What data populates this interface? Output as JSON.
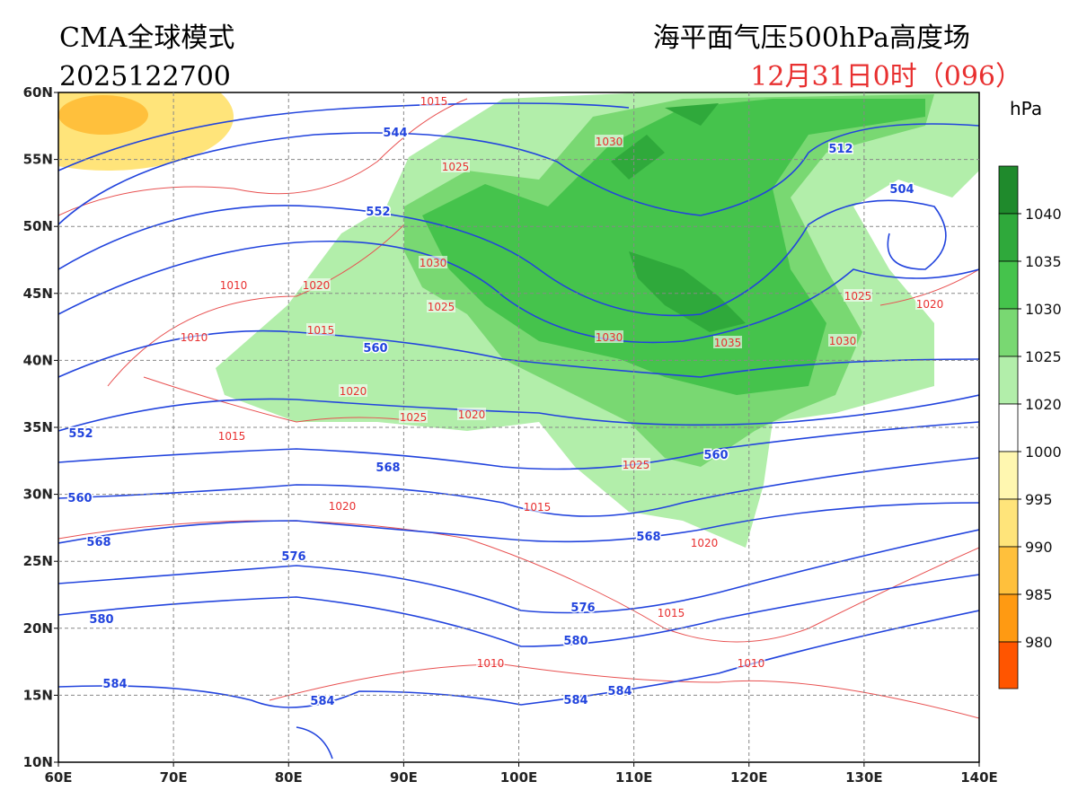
{
  "header": {
    "model": "CMA全球模式",
    "init_time": "2025122700",
    "product": "海平面气压500hPa高度场",
    "valid_time": "12月31日0时（096）"
  },
  "map": {
    "lon_range": [
      60,
      140
    ],
    "lat_range": [
      10,
      60
    ],
    "lon_ticks": [
      {
        "value": 60,
        "label": "60E"
      },
      {
        "value": 70,
        "label": "70E"
      },
      {
        "value": 80,
        "label": "80E"
      },
      {
        "value": 90,
        "label": "90E"
      },
      {
        "value": 100,
        "label": "100E"
      },
      {
        "value": 110,
        "label": "110E"
      },
      {
        "value": 120,
        "label": "120E"
      },
      {
        "value": 130,
        "label": "130E"
      },
      {
        "value": 140,
        "label": "140E"
      }
    ],
    "lat_ticks": [
      {
        "value": 10,
        "label": "10N"
      },
      {
        "value": 15,
        "label": "15N"
      },
      {
        "value": 20,
        "label": "20N"
      },
      {
        "value": 25,
        "label": "25N"
      },
      {
        "value": 30,
        "label": "30N"
      },
      {
        "value": 35,
        "label": "35N"
      },
      {
        "value": 40,
        "label": "40N"
      },
      {
        "value": 45,
        "label": "45N"
      },
      {
        "value": 50,
        "label": "50N"
      },
      {
        "value": 55,
        "label": "55N"
      },
      {
        "value": 60,
        "label": "60N"
      }
    ],
    "grid": true,
    "isobar_labels": [
      1015,
      1030,
      1025,
      1030,
      1010,
      1020,
      1025,
      1015,
      1010,
      1030,
      1035,
      1030,
      1025,
      1020,
      1020,
      1025,
      1020,
      1015,
      1025,
      1020,
      1015,
      1020,
      1015,
      1010,
      1010
    ],
    "height_labels": [
      544,
      512,
      504,
      552,
      560,
      552,
      568,
      560,
      560,
      568,
      568,
      576,
      576,
      580,
      580,
      584,
      584,
      584,
      584
    ]
  },
  "colorbar": {
    "unit": "hPa",
    "levels": [
      1040,
      1035,
      1030,
      1025,
      1020,
      1000,
      995,
      990,
      985,
      980
    ],
    "colors": [
      "#1f8a2c",
      "#2fa93b",
      "#45c34c",
      "#79d872",
      "#b2eeaa",
      "#ffffff",
      "#fff7b0",
      "#ffe47a",
      "#ffc03c",
      "#ff9a12",
      "#ff5500"
    ]
  }
}
